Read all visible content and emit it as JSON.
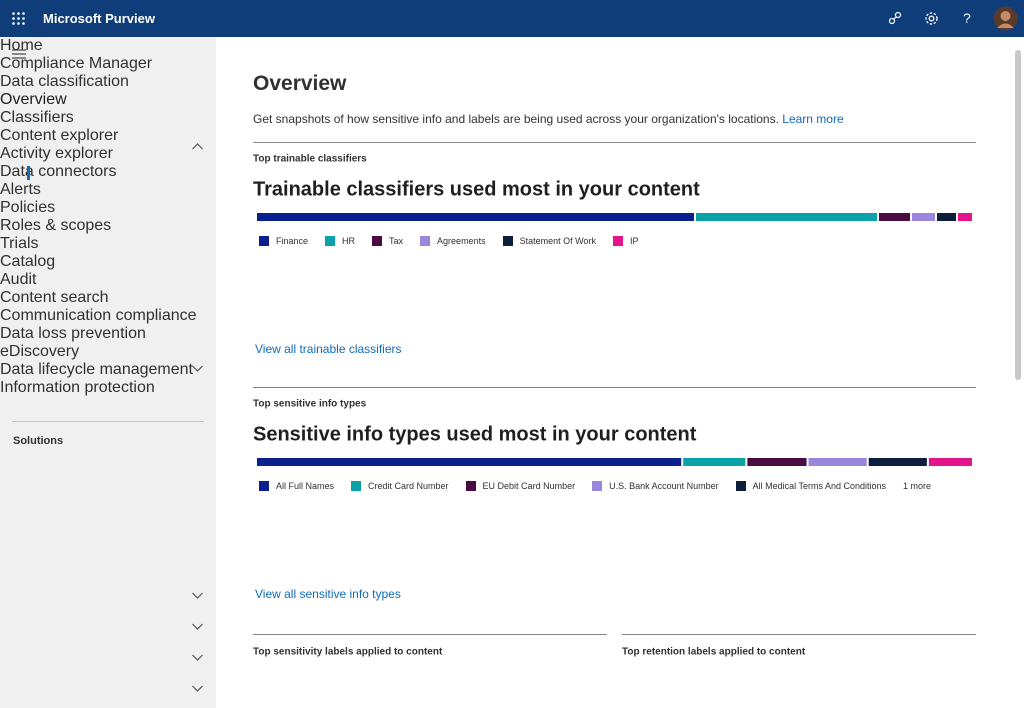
{
  "header": {
    "app_name": "Microsoft Purview",
    "help_icon": "?"
  },
  "nav": {
    "items": [
      "Home",
      "Compliance Manager",
      "Data classification",
      "Overview",
      "Classifiers",
      "Content explorer",
      "Activity explorer",
      "Data connectors",
      "Alerts",
      "Policies",
      "Roles & scopes",
      "Trials"
    ],
    "solutions_heading": "Solutions",
    "solutions": [
      "Catalog",
      "Audit",
      "Content search",
      "Communication compliance",
      "Data loss prevention",
      "eDiscovery",
      "Data lifecycle management",
      "Information protection"
    ]
  },
  "page": {
    "title": "Overview",
    "description": "Get snapshots of how sensitive info and labels are being used across your organization's locations.",
    "learn_more": "Learn more",
    "bottom_left_label": "Top sensitivity labels applied to content",
    "bottom_right_label": "Top retention labels applied to content"
  },
  "chart_data": [
    {
      "type": "bar",
      "stacked": true,
      "section_label": "Top trainable classifiers",
      "title": "Trainable classifiers used most in your content",
      "link": "View all trainable classifiers",
      "series": [
        {
          "name": "Finance",
          "color": "#0c1f8e",
          "values": [
            437
          ]
        },
        {
          "name": "HR",
          "color": "#0aa2a8",
          "values": [
            181
          ]
        },
        {
          "name": "Tax",
          "color": "#4a0b40",
          "values": [
            31
          ]
        },
        {
          "name": "Agreements",
          "color": "#9a86dc",
          "values": [
            23
          ]
        },
        {
          "name": "Statement Of Work",
          "color": "#0c1e3b",
          "values": [
            19
          ]
        },
        {
          "name": "IP",
          "color": "#e3158d",
          "values": [
            14
          ]
        }
      ]
    },
    {
      "type": "bar",
      "stacked": true,
      "section_label": "Top sensitive info types",
      "title": "Sensitive info types used most in your content",
      "link": "View all sensitive info types",
      "more_label": "1 more",
      "series": [
        {
          "name": "All Full Names",
          "color": "#0c1f8e",
          "values": [
            423
          ]
        },
        {
          "name": "Credit Card Number",
          "color": "#0aa2a8",
          "values": [
            62
          ]
        },
        {
          "name": "EU Debit Card Number",
          "color": "#4a0b40",
          "values": [
            59
          ]
        },
        {
          "name": "U.S. Bank Account Number",
          "color": "#9a86dc",
          "values": [
            58
          ]
        },
        {
          "name": "All Medical Terms And Conditions",
          "color": "#0c1e3b",
          "values": [
            58
          ]
        },
        {
          "name": null,
          "color": "#e3158d",
          "values": [
            43
          ]
        }
      ]
    }
  ]
}
